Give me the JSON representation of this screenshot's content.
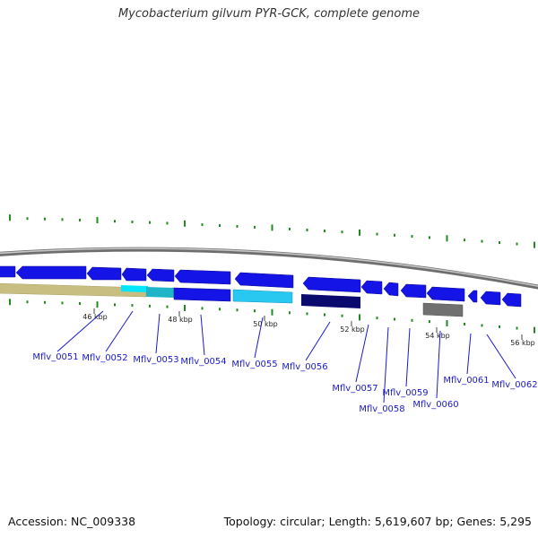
{
  "title": "Mycobacterium gilvum PYR-GCK, complete genome",
  "accession": "Accession: NC_009338",
  "summary": "Topology: circular; Length: 5,619,607 bp; Genes: 5,295",
  "colors": {
    "backbone": "#8c8c8c",
    "forward_gene": "#1414e6",
    "khaki_feature": "#c8be82",
    "cyan_feature": "#00e6ff",
    "teal_feature": "#20b4c8",
    "lightblue_feature": "#28c8f0",
    "navy_feature": "#0a0a6e",
    "gray_feature": "#707070",
    "gc_tick": "#1e8c1e",
    "label": "#1a1ad0"
  },
  "ruler": {
    "ticks": [
      {
        "label": "46 kbp"
      },
      {
        "label": "48 kbp"
      },
      {
        "label": "50 kbp"
      },
      {
        "label": "52 kbp"
      },
      {
        "label": "54 kbp"
      },
      {
        "label": "56 kbp"
      }
    ]
  },
  "genes": [
    {
      "name": "Mflv_0051"
    },
    {
      "name": "Mflv_0052"
    },
    {
      "name": "Mflv_0053"
    },
    {
      "name": "Mflv_0054"
    },
    {
      "name": "Mflv_0055"
    },
    {
      "name": "Mflv_0056"
    },
    {
      "name": "Mflv_0057"
    },
    {
      "name": "Mflv_0058"
    },
    {
      "name": "Mflv_0059"
    },
    {
      "name": "Mflv_0060"
    },
    {
      "name": "Mflv_0061"
    },
    {
      "name": "Mflv_0062"
    }
  ]
}
